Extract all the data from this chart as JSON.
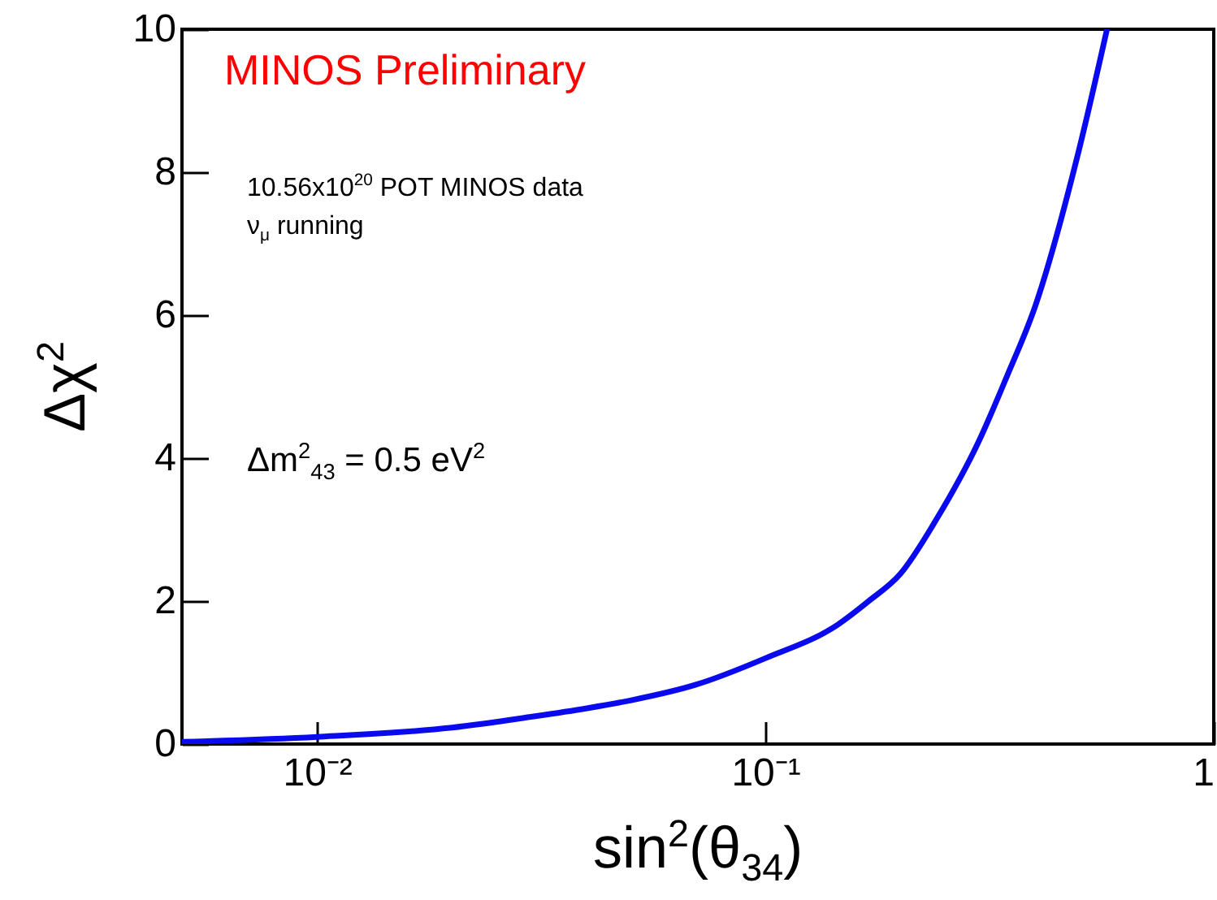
{
  "chart_data": {
    "type": "line",
    "xlabel": "sin$^{2}$(θ$_{34}$)",
    "ylabel": "Δχ$^{2}$",
    "annotations": [
      "MINOS Preliminary",
      "10.56x10$^{20}$ POT MINOS data",
      "ν$_{μ}$ running",
      "Δm$^{2}$$_{43}$ = 0.5 eV$^{2}$"
    ],
    "log": "x",
    "grid": false,
    "marker": "none",
    "line_style": "solid",
    "x": [
      0.005,
      0.01,
      0.02,
      0.03,
      0.04,
      0.05,
      0.07,
      0.1,
      0.145,
      0.17,
      0.2,
      0.24,
      0.3,
      0.346,
      0.4,
      0.5,
      0.578
    ],
    "series": [
      {
        "color": "#0a0aee",
        "values": [
          0.03,
          0.1,
          0.23,
          0.38,
          0.5,
          0.61,
          0.83,
          1.2,
          1.67,
          2.0,
          2.38,
          3.13,
          4.25,
          5.15,
          6.13,
          8.3,
          10
        ]
      }
    ],
    "xlim": [
      0.005,
      1
    ],
    "xticks": [
      {
        "value": 0.01,
        "label": "10⁻²"
      },
      {
        "value": 0.1,
        "label": "10⁻¹"
      },
      1
    ],
    "ylim": [
      0,
      10
    ],
    "yticks": [
      0,
      2,
      4,
      6,
      8,
      10
    ]
  }
}
